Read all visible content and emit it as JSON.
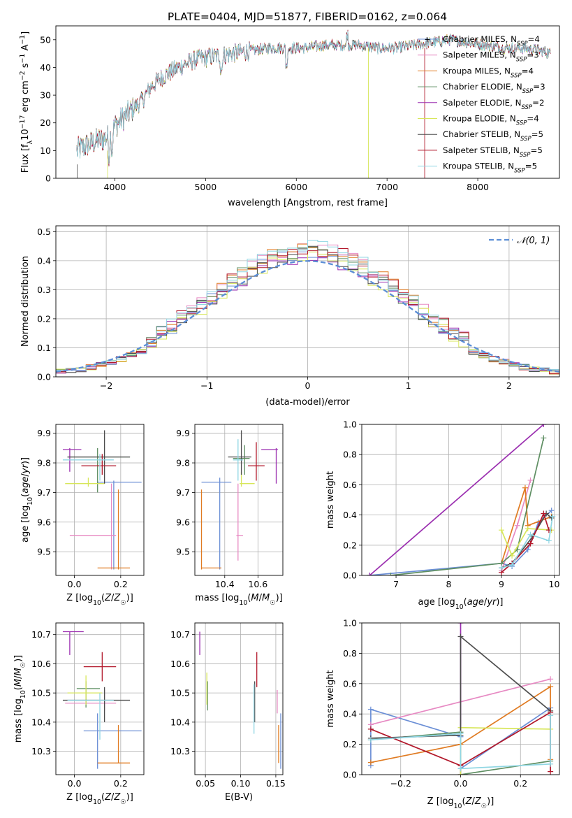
{
  "figure_title": "PLATE=0404, MJD=51877, FIBERID=0162, z=0.064",
  "colors": {
    "Chabrier MILES": "#6b8fd6",
    "Salpeter MILES": "#e78ac3",
    "Kroupa MILES": "#e07b22",
    "Chabrier ELODIE": "#5f8f63",
    "Salpeter ELODIE": "#9b2fb0",
    "Kroupa ELODIE": "#d7e65a",
    "Chabrier STELIB": "#4d4d4d",
    "Salpeter STELIB": "#b2182b",
    "Kroupa STELIB": "#8fd6e3"
  },
  "chart_data": [
    {
      "id": "spectrum",
      "type": "line",
      "title": "PLATE=0404, MJD=51877, FIBERID=0162, z=0.064",
      "xlabel": "wavelength [Angstrom, rest frame]",
      "ylabel": "Flux [f_λ 10^-17 erg cm^-2 s^-1 A^-1]",
      "xlim": [
        3350,
        8900
      ],
      "ylim": [
        0,
        55
      ],
      "xticks": [
        4000,
        5000,
        6000,
        7000,
        8000
      ],
      "yticks": [
        0,
        10,
        20,
        30,
        40,
        50
      ],
      "grid": false,
      "legend_position": "top-right",
      "continuum": {
        "x": [
          3580,
          3700,
          3850,
          3950,
          4000,
          4100,
          4200,
          4300,
          4400,
          4500,
          4700,
          4900,
          5100,
          5300,
          5500,
          5700,
          5900,
          6100,
          6300,
          6500,
          6700,
          6900,
          7100,
          7300,
          7500,
          7700,
          7900,
          8100,
          8300,
          8500,
          8700,
          8800
        ],
        "y": [
          10,
          12,
          14,
          15,
          19,
          22,
          25,
          28,
          33,
          36,
          40,
          43,
          44,
          45,
          46,
          47,
          47,
          47,
          48,
          48,
          48,
          47,
          47,
          48,
          49,
          50,
          49,
          48,
          47,
          47,
          46,
          45
        ]
      },
      "series": [
        {
          "name": "Chabrier MILES, N_SSP=4",
          "label": "Chabrier MILES, N",
          "sub": "SSP",
          "count": "=4"
        },
        {
          "name": "Salpeter MILES, N_SSP=3",
          "label": "Salpeter MILES, N",
          "sub": "SSP",
          "count": "=3"
        },
        {
          "name": "Kroupa MILES, N_SSP=4",
          "label": "Kroupa MILES, N",
          "sub": "SSP",
          "count": "=4"
        },
        {
          "name": "Chabrier ELODIE, N_SSP=3",
          "label": "Chabrier ELODIE, N",
          "sub": "SSP",
          "count": "=3"
        },
        {
          "name": "Salpeter ELODIE, N_SSP=2",
          "label": "Salpeter ELODIE, N",
          "sub": "SSP",
          "count": "=2"
        },
        {
          "name": "Kroupa ELODIE, N_SSP=4",
          "label": "Kroupa ELODIE, N",
          "sub": "SSP",
          "count": "=4"
        },
        {
          "name": "Chabrier STELIB, N_SSP=5",
          "label": "Chabrier STELIB, N",
          "sub": "SSP",
          "count": "=5"
        },
        {
          "name": "Salpeter STELIB, N_SSP=5",
          "label": "Salpeter STELIB, N",
          "sub": "SSP",
          "count": "=5"
        },
        {
          "name": "Kroupa STELIB, N_SSP=5",
          "label": "Kroupa STELIB, N",
          "sub": "SSP",
          "count": "=5"
        }
      ]
    },
    {
      "id": "residuals",
      "type": "histogram",
      "xlabel": "(data-model)/error",
      "ylabel": "Normed distribution",
      "xlim": [
        -2.5,
        2.5
      ],
      "ylim": [
        0,
        0.52
      ],
      "xticks": [
        -2,
        -1,
        0,
        1,
        2
      ],
      "yticks": [
        0.0,
        0.1,
        0.2,
        0.3,
        0.4,
        0.5
      ],
      "grid": true,
      "bin_width": 0.1,
      "legend": "𝒩(0, 1)",
      "legend_position": "top-right"
    },
    {
      "id": "age_vs_Z",
      "type": "errorbar",
      "xlabel": "Z [log10(Z/Z☉)]",
      "ylabel": "age  [log10(age/yr)]",
      "xlim": [
        -0.08,
        0.3
      ],
      "ylim": [
        9.42,
        9.93
      ],
      "xticks": [
        0.0,
        0.2
      ],
      "yticks": [
        9.5,
        9.6,
        9.7,
        9.8,
        9.9
      ],
      "grid": true,
      "points": [
        {
          "x": 0.17,
          "y": 9.735,
          "xlo": 0.1,
          "xhi": 0.29,
          "ylo": 9.44,
          "yhi": 9.74
        },
        {
          "x": 0.16,
          "y": 9.555,
          "xlo": -0.02,
          "xhi": 0.18,
          "ylo": 9.44,
          "yhi": 9.73
        },
        {
          "x": 0.19,
          "y": 9.445,
          "xlo": 0.1,
          "xhi": 0.24,
          "ylo": 9.44,
          "yhi": 9.71
        },
        {
          "x": 0.1,
          "y": 9.82,
          "xlo": -0.03,
          "xhi": 0.24,
          "ylo": 9.7,
          "yhi": 9.85
        },
        {
          "x": -0.02,
          "y": 9.845,
          "xlo": -0.05,
          "xhi": 0.03,
          "ylo": 9.77,
          "yhi": 9.85
        },
        {
          "x": 0.06,
          "y": 9.73,
          "xlo": -0.04,
          "xhi": 0.13,
          "ylo": 9.72,
          "yhi": 9.75
        },
        {
          "x": 0.13,
          "y": 9.82,
          "xlo": -0.03,
          "xhi": 0.24,
          "ylo": 9.73,
          "yhi": 9.91
        },
        {
          "x": 0.12,
          "y": 9.79,
          "xlo": 0.03,
          "xhi": 0.18,
          "ylo": 9.76,
          "yhi": 9.83
        },
        {
          "x": 0.11,
          "y": 9.81,
          "xlo": -0.05,
          "xhi": 0.17,
          "ylo": 9.74,
          "yhi": 9.83
        }
      ]
    },
    {
      "id": "age_vs_mass",
      "type": "errorbar",
      "xlabel": "mass [log10(M/M☉)]",
      "ylabel": "",
      "xlim": [
        10.22,
        10.75
      ],
      "ylim": [
        9.42,
        9.93
      ],
      "xticks": [
        10.4,
        10.6
      ],
      "yticks": [
        9.5,
        9.6,
        9.7,
        9.8,
        9.9
      ],
      "grid": true,
      "points": [
        {
          "x": 10.37,
          "y": 9.735,
          "xlo": 10.26,
          "xhi": 10.44,
          "ylo": 9.44,
          "yhi": 9.75
        },
        {
          "x": 10.48,
          "y": 9.555,
          "xlo": 10.47,
          "xhi": 10.51,
          "ylo": 9.47,
          "yhi": 9.73
        },
        {
          "x": 10.26,
          "y": 9.445,
          "xlo": 10.26,
          "xhi": 10.38,
          "ylo": 9.44,
          "yhi": 9.71
        },
        {
          "x": 10.52,
          "y": 9.815,
          "xlo": 10.45,
          "xhi": 10.55,
          "ylo": 9.76,
          "yhi": 9.86
        },
        {
          "x": 10.71,
          "y": 9.845,
          "xlo": 10.62,
          "xhi": 10.72,
          "ylo": 9.73,
          "yhi": 9.85
        },
        {
          "x": 10.5,
          "y": 9.73,
          "xlo": 10.49,
          "xhi": 10.58,
          "ylo": 9.72,
          "yhi": 9.77
        },
        {
          "x": 10.5,
          "y": 9.82,
          "xlo": 10.42,
          "xhi": 10.56,
          "ylo": 9.76,
          "yhi": 9.91
        },
        {
          "x": 10.59,
          "y": 9.79,
          "xlo": 10.54,
          "xhi": 10.64,
          "ylo": 9.74,
          "yhi": 9.87
        },
        {
          "x": 10.48,
          "y": 9.81,
          "xlo": 10.45,
          "xhi": 10.51,
          "ylo": 9.74,
          "yhi": 9.88
        }
      ]
    },
    {
      "id": "weight_vs_age",
      "type": "line",
      "xlabel": "age  [log10(age/yr)]",
      "ylabel": "mass weight",
      "xlim": [
        6.35,
        10.1
      ],
      "ylim": [
        0,
        1
      ],
      "xticks": [
        7,
        8,
        9,
        10
      ],
      "yticks": [
        0.0,
        0.2,
        0.4,
        0.6,
        0.8,
        1.0
      ],
      "grid": true,
      "series": [
        {
          "x": [
            6.5,
            9.0,
            9.2,
            9.5,
            9.7,
            9.95
          ],
          "y": [
            0.0,
            0.08,
            0.06,
            0.17,
            0.35,
            0.43
          ]
        },
        {
          "x": [
            9.0,
            9.3,
            9.55
          ],
          "y": [
            0.03,
            0.33,
            0.63
          ]
        },
        {
          "x": [
            9.0,
            9.45,
            9.5,
            9.95
          ],
          "y": [
            0.08,
            0.58,
            0.33,
            0.39
          ]
        },
        {
          "x": [
            6.9,
            9.0,
            9.3,
            9.8
          ],
          "y": [
            0.0,
            0.08,
            0.17,
            0.91
          ]
        },
        {
          "x": [
            6.5,
            9.8
          ],
          "y": [
            0.0,
            1.0
          ]
        },
        {
          "x": [
            9.0,
            9.2,
            9.5,
            9.95
          ],
          "y": [
            0.3,
            0.13,
            0.31,
            0.3
          ]
        },
        {
          "x": [
            9.0,
            9.2,
            9.6,
            9.85,
            9.95
          ],
          "y": [
            0.05,
            0.08,
            0.26,
            0.41,
            0.38
          ]
        },
        {
          "x": [
            9.0,
            9.2,
            9.55,
            9.8,
            9.9
          ],
          "y": [
            0.02,
            0.08,
            0.21,
            0.41,
            0.3
          ]
        },
        {
          "x": [
            9.0,
            9.2,
            9.55,
            9.9,
            9.97
          ],
          "y": [
            0.05,
            0.07,
            0.27,
            0.23,
            0.39
          ]
        }
      ]
    },
    {
      "id": "mass_vs_Z",
      "type": "errorbar",
      "xlabel": "Z [log10(Z/Z☉)]",
      "ylabel": "mass [log10(M/M☉)]",
      "xlim": [
        -0.08,
        0.3
      ],
      "ylim": [
        10.22,
        10.74
      ],
      "xticks": [
        0.0,
        0.2
      ],
      "yticks": [
        10.3,
        10.4,
        10.5,
        10.6,
        10.7
      ],
      "grid": true,
      "points": [
        {
          "x": 0.1,
          "y": 10.37,
          "xlo": 0.04,
          "xhi": 0.29,
          "ylo": 10.24,
          "yhi": 10.43
        },
        {
          "x": 0.13,
          "y": 10.465,
          "xlo": -0.04,
          "xhi": 0.18,
          "ylo": 10.44,
          "yhi": 10.51
        },
        {
          "x": 0.19,
          "y": 10.26,
          "xlo": 0.1,
          "xhi": 0.24,
          "ylo": 10.26,
          "yhi": 10.39
        },
        {
          "x": 0.05,
          "y": 10.515,
          "xlo": 0.01,
          "xhi": 0.11,
          "ylo": 10.45,
          "yhi": 10.54
        },
        {
          "x": -0.02,
          "y": 10.71,
          "xlo": -0.05,
          "xhi": 0.04,
          "ylo": 10.63,
          "yhi": 10.71
        },
        {
          "x": 0.05,
          "y": 10.5,
          "xlo": -0.03,
          "xhi": 0.12,
          "ylo": 10.46,
          "yhi": 10.56
        },
        {
          "x": 0.13,
          "y": 10.475,
          "xlo": -0.05,
          "xhi": 0.24,
          "ylo": 10.4,
          "yhi": 10.52
        },
        {
          "x": 0.12,
          "y": 10.59,
          "xlo": 0.04,
          "xhi": 0.18,
          "ylo": 10.54,
          "yhi": 10.64
        },
        {
          "x": 0.11,
          "y": 10.475,
          "xlo": -0.03,
          "xhi": 0.17,
          "ylo": 10.34,
          "yhi": 10.5
        }
      ]
    },
    {
      "id": "mass_vs_ebv",
      "type": "errorbar",
      "xlabel": "E(B-V)",
      "ylabel": "",
      "xlim": [
        0.035,
        0.16
      ],
      "ylim": [
        10.22,
        10.74
      ],
      "xticks": [
        0.05,
        0.1,
        0.15
      ],
      "yticks": [
        10.3,
        10.4,
        10.5,
        10.6,
        10.7
      ],
      "grid": true,
      "points": [
        {
          "x": 0.157,
          "y": 10.37,
          "ylo": 10.24,
          "yhi": 10.43
        },
        {
          "x": 0.152,
          "y": 10.465,
          "ylo": 10.43,
          "yhi": 10.51
        },
        {
          "x": 0.154,
          "y": 10.28,
          "ylo": 10.26,
          "yhi": 10.39
        },
        {
          "x": 0.053,
          "y": 10.515,
          "ylo": 10.44,
          "yhi": 10.54
        },
        {
          "x": 0.042,
          "y": 10.68,
          "ylo": 10.63,
          "yhi": 10.71
        },
        {
          "x": 0.052,
          "y": 10.5,
          "ylo": 10.46,
          "yhi": 10.57
        },
        {
          "x": 0.12,
          "y": 10.48,
          "ylo": 10.4,
          "yhi": 10.54
        },
        {
          "x": 0.123,
          "y": 10.58,
          "ylo": 10.52,
          "yhi": 10.64
        },
        {
          "x": 0.119,
          "y": 10.47,
          "ylo": 10.36,
          "yhi": 10.53
        }
      ]
    },
    {
      "id": "weight_vs_Z",
      "type": "line",
      "xlabel": "Z [log10(Z/Z☉)]",
      "ylabel": "mass weight",
      "xlim": [
        -0.33,
        0.33
      ],
      "ylim": [
        0,
        1
      ],
      "xticks": [
        -0.2,
        0.0,
        0.2
      ],
      "yticks": [
        0.0,
        0.2,
        0.4,
        0.6,
        0.8,
        1.0
      ],
      "grid": true,
      "series": [
        {
          "x": [
            -0.3,
            -0.3,
            0.0,
            0.0,
            0.3
          ],
          "y": [
            0.06,
            0.43,
            0.25,
            0.04,
            0.44
          ]
        },
        {
          "x": [
            -0.3,
            0.3
          ],
          "y": [
            0.33,
            0.63
          ]
        },
        {
          "x": [
            -0.3,
            0.0,
            0.3,
            0.3
          ],
          "y": [
            0.08,
            0.2,
            0.58,
            0.1
          ]
        },
        {
          "x": [
            -0.3,
            0.0,
            0.0,
            0.3
          ],
          "y": [
            0.23,
            0.28,
            0.0,
            0.09
          ]
        },
        {
          "x": [
            0.0,
            0.0
          ],
          "y": [
            0.0,
            1.0
          ]
        },
        {
          "x": [
            0.0,
            0.0,
            0.3
          ],
          "y": [
            0.0,
            0.31,
            0.3
          ]
        },
        {
          "x": [
            -0.3,
            0.0,
            0.0,
            0.3
          ],
          "y": [
            0.24,
            0.26,
            0.91,
            0.42
          ]
        },
        {
          "x": [
            -0.3,
            0.0,
            0.3,
            0.3
          ],
          "y": [
            0.3,
            0.06,
            0.41,
            0.02
          ]
        },
        {
          "x": [
            -0.3,
            0.0,
            0.0,
            0.3,
            0.3
          ],
          "y": [
            0.23,
            0.27,
            0.04,
            0.07,
            0.39
          ]
        }
      ]
    }
  ]
}
